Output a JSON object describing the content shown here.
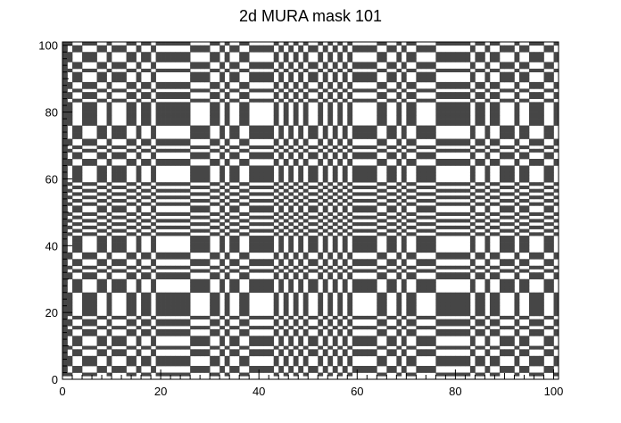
{
  "chart_data": {
    "type": "heatmap",
    "title": "2d MURA mask 101",
    "xlabel": "",
    "ylabel": "",
    "xlim": [
      0,
      101
    ],
    "ylim": [
      0,
      101
    ],
    "size": 101,
    "xticks": [
      0,
      20,
      40,
      60,
      80,
      100
    ],
    "yticks": [
      0,
      20,
      40,
      60,
      80,
      100
    ],
    "description_of_values": "MURA mask of prime order 101: cell (i,j) is open (value 1, dark) when i,j>0 and Legendre(i)*Legendre(j)=+1, or when i=0 and j>0; otherwise closed (value 0, white).",
    "fill_color": "#464646",
    "background_color": "#ffffff"
  }
}
